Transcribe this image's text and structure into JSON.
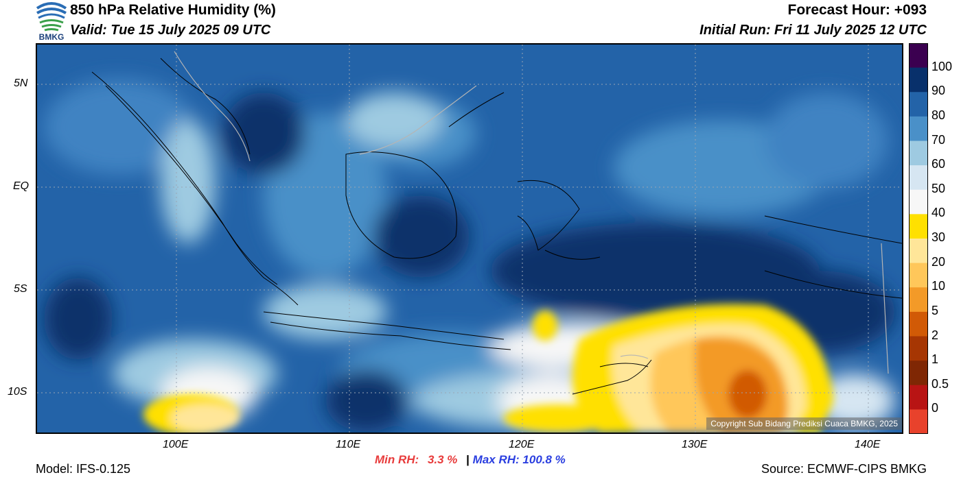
{
  "header": {
    "title": "850 hPa Relative Humidity (%)",
    "valid": "Valid: Tue 15 July 2025 09 UTC",
    "forecast_hour": "Forecast Hour: +093",
    "initial_run": "Initial Run: Fri 11 July 2025 12 UTC",
    "logo_text": "BMKG"
  },
  "map": {
    "lat_ticks": [
      "5N",
      "EQ",
      "5S",
      "10S"
    ],
    "lon_ticks": [
      "100E",
      "110E",
      "120E",
      "130E",
      "140E"
    ],
    "copyright": "Copyright Sub Bidang Prediksi Cuaca BMKG, 2025"
  },
  "colorbar": {
    "levels": [
      "100",
      "90",
      "80",
      "70",
      "60",
      "50",
      "40",
      "30",
      "20",
      "10",
      "5",
      "2",
      "1",
      "0.5",
      "0"
    ],
    "colors": [
      "#3b0050",
      "#08306b",
      "#2363a8",
      "#4a90c8",
      "#9ecae1",
      "#d6e6f2",
      "#f7f7f7",
      "#ffe000",
      "#ffe699",
      "#ffc75a",
      "#f39a28",
      "#d15a06",
      "#a63603",
      "#7f2704",
      "#b81414",
      "#e8422c"
    ]
  },
  "stats": {
    "min_label": "Min RH:",
    "min_value": "3.3 %",
    "separator": "|",
    "max_label": "Max RH:",
    "max_value": "100.8 %",
    "min_color": "#e83c3c",
    "max_color": "#2b3fe0"
  },
  "footer": {
    "model": "Model: IFS-0.125",
    "source": "Source: ECMWF-CIPS BMKG"
  }
}
